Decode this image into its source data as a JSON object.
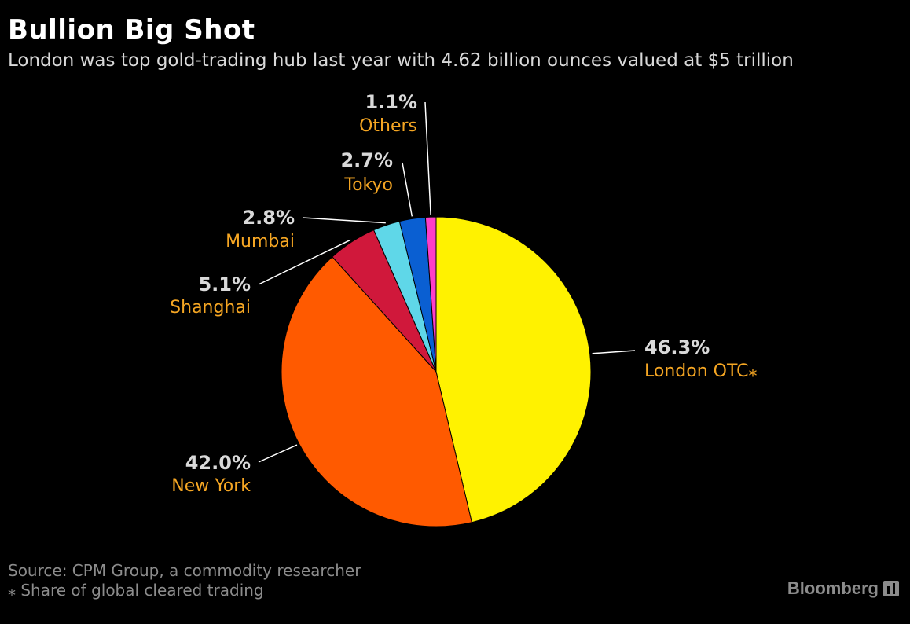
{
  "header": {
    "title": "Bullion Big Shot",
    "subtitle": "London was top gold-trading hub last year with 4.62 billion ounces valued at $5 trillion"
  },
  "chart_data": {
    "type": "pie",
    "start_angle_deg": 0,
    "direction": "clockwise",
    "slices": [
      {
        "label": "London OTC⁎",
        "value": 46.3,
        "pct_label": "46.3%",
        "color": "#fff200"
      },
      {
        "label": "New York",
        "value": 42.0,
        "pct_label": "42.0%",
        "color": "#ff5a00"
      },
      {
        "label": "Shanghai",
        "value": 5.1,
        "pct_label": "5.1%",
        "color": "#d0183b"
      },
      {
        "label": "Mumbai",
        "value": 2.8,
        "pct_label": "2.8%",
        "color": "#5fd7e8"
      },
      {
        "label": "Tokyo",
        "value": 2.7,
        "pct_label": "2.7%",
        "color": "#0a5fd2"
      },
      {
        "label": "Others",
        "value": 1.1,
        "pct_label": "1.1%",
        "color": "#ff3ec8"
      }
    ]
  },
  "footer": {
    "source": "Source: CPM Group, a commodity researcher",
    "note": "⁎ Share of global cleared trading",
    "brand": "Bloomberg",
    "brand_icon": "bloomberg-chart-icon"
  }
}
